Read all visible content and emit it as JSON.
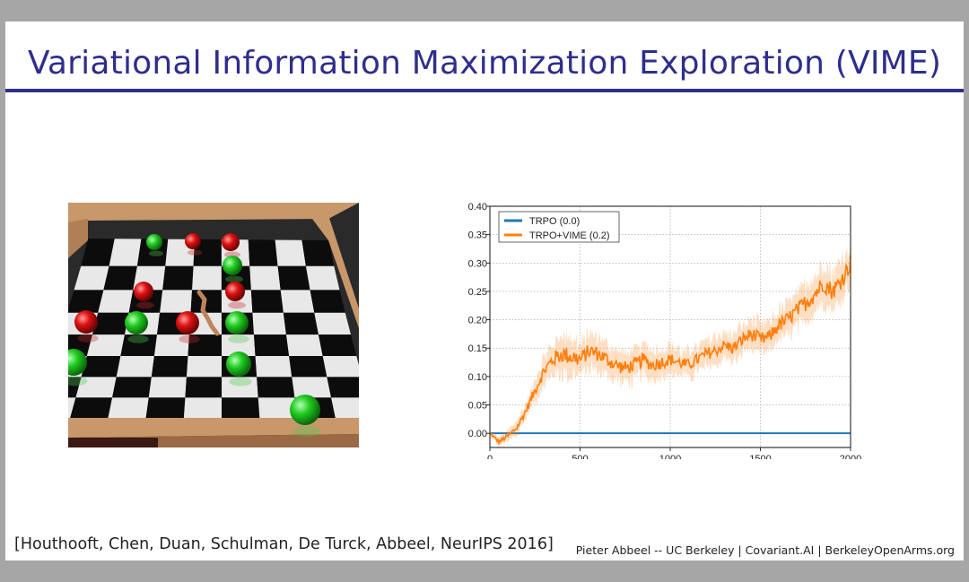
{
  "slide": {
    "title": "Variational Information Maximization Exploration (VIME)",
    "citation": "[Houthooft, Chen, Duan, Schulman, De Turck, Abbeel, NeurIPS 2016]",
    "footer": "Pieter Abbeel -- UC Berkeley | Covariant.AI | BerkeleyOpenArms.org",
    "accent_color": "#2e2e8c"
  },
  "image": {
    "name": "snake-robot-gathering-simulation",
    "colors": {
      "good_ball": "#22cc22",
      "bad_ball": "#dd1111",
      "wall": "#c8976a"
    }
  },
  "chart_data": {
    "type": "line",
    "x_range": [
      0,
      2000
    ],
    "ylim": [
      -0.025,
      0.4
    ],
    "x_ticks": [
      "0",
      "500",
      "1000",
      "1500",
      "2000"
    ],
    "y_ticks": [
      "0.00",
      "0.05",
      "0.10",
      "0.15",
      "0.20",
      "0.25",
      "0.30",
      "0.35",
      "0.40"
    ],
    "y_tick_values": [
      0,
      0.05,
      0.1,
      0.15,
      0.2,
      0.25,
      0.3,
      0.35,
      0.4
    ],
    "grid": true,
    "legend_position": "top-left",
    "series": [
      {
        "name": "TRPO (0.0)",
        "color": "#1f77b4",
        "x": [
          0,
          2000
        ],
        "y": [
          0.0,
          0.0
        ]
      },
      {
        "name": "TRPO+VIME (0.2)",
        "color": "#ff7f0e",
        "x": [
          0,
          50,
          100,
          150,
          200,
          250,
          300,
          350,
          400,
          450,
          500,
          550,
          600,
          650,
          700,
          750,
          800,
          850,
          900,
          950,
          1000,
          1050,
          1100,
          1150,
          1200,
          1250,
          1300,
          1350,
          1400,
          1450,
          1500,
          1550,
          1600,
          1650,
          1700,
          1750,
          1800,
          1850,
          1900,
          1950,
          2000
        ],
        "y": [
          0.0,
          -0.015,
          -0.005,
          0.01,
          0.04,
          0.075,
          0.11,
          0.13,
          0.14,
          0.135,
          0.13,
          0.145,
          0.14,
          0.13,
          0.12,
          0.115,
          0.12,
          0.13,
          0.12,
          0.125,
          0.13,
          0.125,
          0.12,
          0.13,
          0.14,
          0.145,
          0.155,
          0.15,
          0.165,
          0.175,
          0.165,
          0.17,
          0.19,
          0.2,
          0.215,
          0.23,
          0.245,
          0.265,
          0.25,
          0.27,
          0.3
        ],
        "band_halfwidth": [
          0.004,
          0.008,
          0.01,
          0.012,
          0.015,
          0.02,
          0.025,
          0.03,
          0.035,
          0.035,
          0.03,
          0.03,
          0.03,
          0.028,
          0.028,
          0.028,
          0.028,
          0.028,
          0.026,
          0.026,
          0.025,
          0.024,
          0.024,
          0.024,
          0.024,
          0.024,
          0.024,
          0.025,
          0.026,
          0.027,
          0.028,
          0.028,
          0.029,
          0.03,
          0.032,
          0.033,
          0.035,
          0.035,
          0.035,
          0.035,
          0.035
        ]
      }
    ]
  }
}
